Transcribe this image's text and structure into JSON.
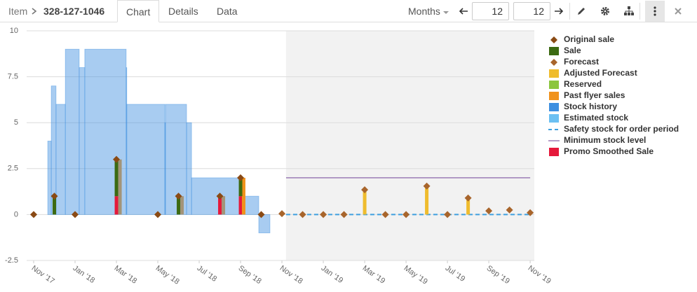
{
  "toolbar": {
    "item_label": "Item",
    "item_id": "328-127-1046",
    "tabs": [
      "Chart",
      "Details",
      "Data"
    ],
    "active_tab": "Chart",
    "period": "Months",
    "from": "12",
    "to": "12"
  },
  "chart_data": {
    "type": "combo",
    "xlim": [
      -0.34,
      24.2
    ],
    "ylim": [
      -2.5,
      10
    ],
    "xticks": [
      {
        "value": 0,
        "label": "Nov '17"
      },
      {
        "value": 2,
        "label": "Jan '18"
      },
      {
        "value": 4,
        "label": "Mar '18"
      },
      {
        "value": 6,
        "label": "May '18"
      },
      {
        "value": 8,
        "label": "Jul '18"
      },
      {
        "value": 10,
        "label": "Sep '18"
      },
      {
        "value": 12,
        "label": "Nov '18"
      },
      {
        "value": 14,
        "label": "Jan '19"
      },
      {
        "value": 16,
        "label": "Mar '19"
      },
      {
        "value": 18,
        "label": "May '19"
      },
      {
        "value": 20,
        "label": "Jul '19"
      },
      {
        "value": 22,
        "label": "Sep '19"
      },
      {
        "value": 24,
        "label": "Nov '19"
      }
    ],
    "yticks": [
      10,
      7.5,
      5,
      2.5,
      0,
      -2.5
    ],
    "grid": true,
    "shaded_xlim": [
      12.2,
      24.2
    ],
    "series": [
      {
        "name": "Original sale",
        "type": "scatter",
        "color": "#8a4a14",
        "x": [
          0,
          1,
          2,
          4,
          6,
          7,
          9,
          10,
          11
        ],
        "values": [
          0,
          1,
          0,
          3,
          0,
          1,
          1,
          2,
          0
        ]
      },
      {
        "name": "Sale",
        "type": "bar",
        "stacked": true,
        "color": "#3c6a12",
        "x": [
          1,
          4,
          7,
          9,
          10
        ],
        "values": [
          1,
          2,
          1,
          0,
          1
        ]
      },
      {
        "name": "Forecast",
        "type": "scatter",
        "color": "#a8652c",
        "x": [
          12,
          13,
          14,
          15,
          16,
          17,
          18,
          19,
          20,
          21,
          22,
          23,
          24
        ],
        "values": [
          0.05,
          0,
          0,
          0,
          1.35,
          0,
          0,
          1.55,
          0,
          0.9,
          0.2,
          0.25,
          0.1
        ]
      },
      {
        "name": "Adjusted Forecast",
        "type": "bar",
        "color": "#efbc2e",
        "x": [
          16,
          19,
          21
        ],
        "values": [
          1.35,
          1.55,
          0.9
        ]
      },
      {
        "name": "Reserved",
        "type": "bar",
        "color": "#8cc63e",
        "x": [],
        "values": []
      },
      {
        "name": "Past flyer sales",
        "type": "bar",
        "color": "#f0921c",
        "x": [
          10.15
        ],
        "values": [
          2
        ]
      },
      {
        "name": "Stock history",
        "type": "step-area",
        "color": "#3d8fe0",
        "x": [
          0.68,
          0.85,
          1.08,
          1.53,
          2.2,
          2.47,
          4.47,
          4.5,
          6.34,
          6.37,
          7.39,
          7.63,
          10.17,
          10.88,
          11.42,
          12.2
        ],
        "values": [
          4,
          7,
          6,
          9,
          8,
          9,
          8,
          6,
          5,
          6,
          5,
          2,
          1,
          -1,
          0,
          0
        ]
      },
      {
        "name": "Estimated stock",
        "type": "step-area",
        "color": "#6cc0f2",
        "x": [],
        "values": []
      },
      {
        "name": "Safety stock for order period",
        "type": "line",
        "dashed": true,
        "color": "#3fa0df",
        "x": [
          12.2,
          24
        ],
        "values": [
          0,
          0
        ]
      },
      {
        "name": "Minimum stock level",
        "type": "line",
        "color": "#9b7cb6",
        "x": [
          12.2,
          24
        ],
        "values": [
          2,
          2
        ]
      },
      {
        "name": "Promo Smoothed Sale",
        "type": "bar",
        "stacked": true,
        "color": "#e5193b",
        "x": [
          4,
          9,
          10
        ],
        "values": [
          1,
          1,
          1
        ]
      },
      {
        "type": "bar",
        "color": "#a39478",
        "x": [
          4.17,
          7.17,
          9.17
        ],
        "values": [
          3,
          1,
          1
        ]
      }
    ]
  }
}
